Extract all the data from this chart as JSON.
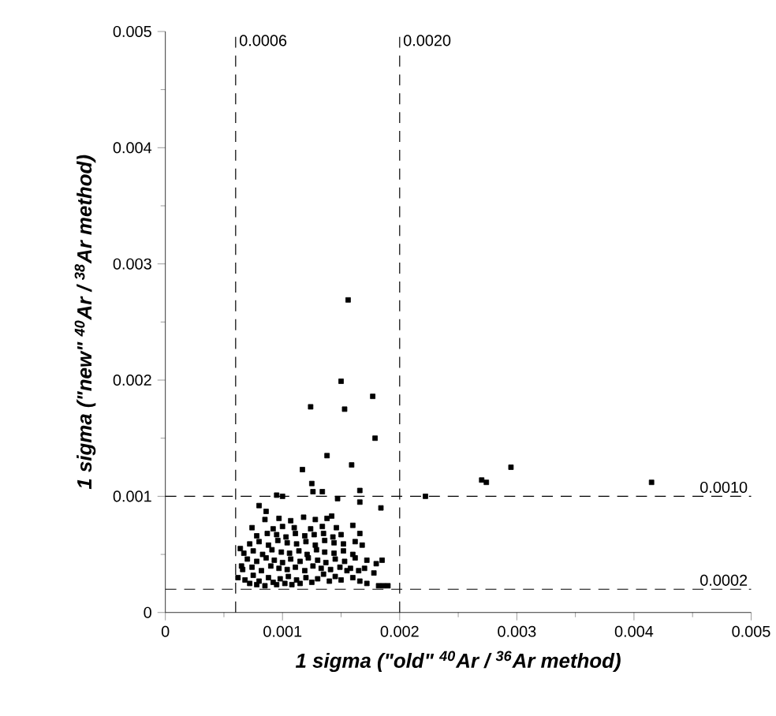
{
  "chart_data": {
    "type": "scatter",
    "xlabel": "1 sigma (\"old\" $^{40}$Ar / $^{36}$Ar method)",
    "ylabel": "1 sigma (\"new\" $^{40}$Ar / $^{38}$Ar method)",
    "xlim": [
      0,
      0.005
    ],
    "ylim": [
      0,
      0.005
    ],
    "xticks": [
      0,
      0.001,
      0.002,
      0.003,
      0.004,
      0.005
    ],
    "yticks": [
      0,
      0.001,
      0.002,
      0.003,
      0.004,
      0.005
    ],
    "marker": "square",
    "grid": false,
    "ref_lines": [
      {
        "axis": "x",
        "value": 0.0006,
        "label": "0.0006",
        "line_style": "dashed"
      },
      {
        "axis": "x",
        "value": 0.002,
        "label": "0.0020",
        "line_style": "dashed"
      },
      {
        "axis": "y",
        "value": 0.001,
        "label": "0.0010",
        "line_style": "dashed"
      },
      {
        "axis": "y",
        "value": 0.0002,
        "label": "0.0002",
        "line_style": "dashed"
      }
    ],
    "series": [
      {
        "color": "#000000",
        "x": [
          0.00156,
          0.0015,
          0.00124,
          0.00153,
          0.00177,
          0.00179,
          0.00138,
          0.00159,
          0.00117,
          0.00125,
          0.00126,
          0.00134,
          0.00166,
          0.00166,
          0.00184,
          0.00095,
          0.001,
          0.00147,
          0.0008,
          0.00086,
          0.00222,
          0.0027,
          0.00274,
          0.00295,
          0.00415,
          0.00062,
          0.00065,
          0.00068,
          0.00072,
          0.00075,
          0.00078,
          0.0008,
          0.00085,
          0.00088,
          0.00092,
          0.00095,
          0.00098,
          0.00102,
          0.00105,
          0.00108,
          0.00112,
          0.00115,
          0.0012,
          0.00125,
          0.0013,
          0.00135,
          0.0014,
          0.00145,
          0.0015,
          0.00155,
          0.0016,
          0.00166,
          0.00172,
          0.00178,
          0.00182,
          0.00186,
          0.0019,
          0.00066,
          0.00074,
          0.00082,
          0.0009,
          0.00097,
          0.00104,
          0.00111,
          0.00119,
          0.00126,
          0.00133,
          0.00141,
          0.00149,
          0.00158,
          0.00165,
          0.0017,
          0.0018,
          0.0007,
          0.00078,
          0.00086,
          0.00093,
          0.001,
          0.00107,
          0.00115,
          0.00122,
          0.0013,
          0.00137,
          0.00145,
          0.00153,
          0.00162,
          0.00172,
          0.00185,
          0.00064,
          0.00067,
          0.00075,
          0.00083,
          0.00091,
          0.00099,
          0.00106,
          0.00114,
          0.00121,
          0.00129,
          0.00136,
          0.00144,
          0.00152,
          0.0016,
          0.00072,
          0.0008,
          0.00088,
          0.00096,
          0.00104,
          0.00112,
          0.0012,
          0.00128,
          0.00136,
          0.00144,
          0.00152,
          0.00162,
          0.00168,
          0.00078,
          0.00087,
          0.00095,
          0.00103,
          0.00111,
          0.00119,
          0.00127,
          0.00135,
          0.00143,
          0.0015,
          0.00166,
          0.00074,
          0.00092,
          0.001,
          0.0011,
          0.00124,
          0.00134,
          0.00146,
          0.0016,
          0.00085,
          0.00097,
          0.00107,
          0.00118,
          0.00128,
          0.00138,
          0.00142
        ],
        "values": [
          0.00269,
          0.00199,
          0.00177,
          0.00175,
          0.00186,
          0.0015,
          0.00135,
          0.00127,
          0.00123,
          0.00111,
          0.00104,
          0.00104,
          0.00105,
          0.00095,
          0.0009,
          0.00101,
          0.001,
          0.00098,
          0.00092,
          0.00087,
          0.001,
          0.00114,
          0.00112,
          0.00125,
          0.00112,
          0.0003,
          0.0004,
          0.00028,
          0.00025,
          0.00032,
          0.00024,
          0.00027,
          0.00023,
          0.0003,
          0.00026,
          0.00024,
          0.00029,
          0.00025,
          0.00031,
          0.00024,
          0.00028,
          0.00025,
          0.0003,
          0.00026,
          0.00029,
          0.00033,
          0.00027,
          0.00031,
          0.00028,
          0.00036,
          0.0003,
          0.00027,
          0.00025,
          0.00034,
          0.00023,
          0.00023,
          0.00023,
          0.00037,
          0.00039,
          0.00036,
          0.0004,
          0.00038,
          0.00037,
          0.00039,
          0.00036,
          0.0004,
          0.00038,
          0.00037,
          0.00039,
          0.00038,
          0.00036,
          0.00038,
          0.00042,
          0.00046,
          0.00044,
          0.00047,
          0.00045,
          0.00043,
          0.00046,
          0.00044,
          0.00047,
          0.00045,
          0.00043,
          0.00046,
          0.00044,
          0.00047,
          0.00045,
          0.00045,
          0.00055,
          0.00051,
          0.00053,
          0.0005,
          0.00054,
          0.00052,
          0.00051,
          0.00053,
          0.0005,
          0.00054,
          0.00052,
          0.00051,
          0.00053,
          0.0005,
          0.00059,
          0.00061,
          0.00058,
          0.00062,
          0.0006,
          0.00059,
          0.00061,
          0.00058,
          0.00062,
          0.0006,
          0.00059,
          0.00061,
          0.00058,
          0.00066,
          0.00068,
          0.00067,
          0.00065,
          0.00068,
          0.00066,
          0.00067,
          0.00068,
          0.00065,
          0.00067,
          0.00068,
          0.00073,
          0.00072,
          0.00074,
          0.00073,
          0.00072,
          0.00074,
          0.00073,
          0.00075,
          0.0008,
          0.00081,
          0.00079,
          0.00082,
          0.0008,
          0.00081,
          0.00083
        ]
      }
    ]
  }
}
